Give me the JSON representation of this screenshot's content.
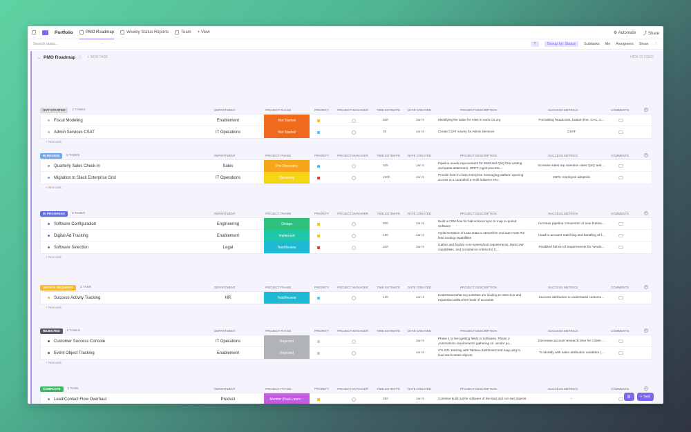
{
  "nav": {
    "portfolio": "Portfolio",
    "tabs": [
      "PMO Roadmap",
      "Weekly Status Reports",
      "Team"
    ],
    "add_view": "+ View",
    "automate": "Automate",
    "share": "Share"
  },
  "toolbar": {
    "search_placeholder": "Search tasks...",
    "more": "···",
    "filter": "T",
    "group_by": "Group by: Status",
    "subtasks": "Subtasks",
    "me": "Me",
    "assignees": "Assignees",
    "show": "Show"
  },
  "board": {
    "title": "PMO Roadmap",
    "new_task": "+ NEW TASK",
    "hide_closed": "HIDE CLOSED",
    "new_task_row": "+ New task"
  },
  "columns": [
    "DEPARTMENT",
    "PROJECT PHASE",
    "PRIORITY",
    "PROJECT MANAGER",
    "TIME ESTIMATE",
    "DATE CREATED",
    "PROJECT DESCRIPTION",
    "SUCCESS METRICS",
    "COMMENTS"
  ],
  "groups": [
    {
      "status": "NOT STARTED",
      "count": "2 TASKS",
      "color": "#d9d9d9",
      "text_color": "#666666",
      "rows": [
        {
          "name": "Fiscal Modeling",
          "dept": "Enablement",
          "phase": "Not Started",
          "phase_color": "#f06a1e",
          "flag": "#f5c518",
          "time": "50h",
          "date": "Jan 5",
          "desc": "Identifying the value for roles in each CX org",
          "metric": "Forcasting headcount, bottom line, CAC, C..."
        },
        {
          "name": "Admin Services CSAT",
          "dept": "IT Operations",
          "phase": "Not Started",
          "phase_color": "#f06a1e",
          "flag": "#4fc3f7",
          "time": "3h",
          "date": "Jan 5",
          "desc": "Create CSAT survey for Admin Services",
          "metric": "CSAT"
        }
      ]
    },
    {
      "status": "IN REVIEW",
      "count": "2 TASKS",
      "color": "#6fa8f5",
      "text_color": "#ffffff",
      "rows": [
        {
          "name": "Quarterly Sales Check-in",
          "dept": "Sales",
          "phase": "Pre-Discovery",
          "phase_color": "#f7a51c",
          "flag": "#4fc3f7",
          "time": "40h",
          "date": "Jan 5",
          "desc": "Pipeline needs improvement for MoM and QoQ fore-casting and quota attainment.  SPIFF mgmt process...",
          "metric": "Increase sales rep retention rates QoQ and ..."
        },
        {
          "name": "Migration to Slack Enterprise Grid",
          "dept": "IT Operations",
          "phase": "Discovery",
          "phase_color": "#f5d616",
          "flag": "#e53935",
          "time": "120h",
          "date": "Jan 5",
          "desc": "Provide best-in-class enterprise messaging platform opening access to a controlled a multi-instance env...",
          "metric": "100% employee adoption"
        }
      ]
    },
    {
      "status": "IN PROGRESS",
      "count": "3 TASKS",
      "color": "#5b6ee8",
      "text_color": "#ffffff",
      "rows": [
        {
          "name": "Software Configuration",
          "dept": "Engineering",
          "phase": "Design",
          "phase_color": "#2ec27e",
          "flag": "#f5c518",
          "time": "60h",
          "date": "Jan 5",
          "desc": "Build a CRM flow for bidirectional sync to map re-quired Software",
          "metric": "Increase pipeline conversion of new busine..."
        },
        {
          "name": "Digital Ad Tracking",
          "dept": "Enablement",
          "phase": "Implement",
          "phase_color": "#1ec7a8",
          "flag": "#f5c518",
          "time": "15h",
          "date": "Jan 5",
          "desc": "Implementation of Lean Data to streamline and auto-mate the lead routing capabilities",
          "metric": "Lead to account matching and handling of f..."
        },
        {
          "name": "Software Selection",
          "dept": "Legal",
          "phase": "Test/Review",
          "phase_color": "#1fb9d4",
          "flag": "#e53935",
          "time": "20h",
          "date": "Jan 5",
          "desc": "Gather and finalize core system/tool requirements, MoSCoW capabilities, and acceptance criteria for C...",
          "metric": "Finalized full set of requirements for Vendo..."
        }
      ]
    },
    {
      "status": "UPDATE REQUIRED",
      "count": "1 TASK",
      "color": "#f5b82e",
      "text_color": "#ffffff",
      "rows": [
        {
          "name": "Success Activity Tracking",
          "dept": "HR",
          "phase": "Test/Review",
          "phase_color": "#1fb9d4",
          "flag": "#4fc3f7",
          "time": "12h",
          "date": "Jan 3",
          "desc": "Understand what rep activities are leading to reten-tion and expansion within their book of accounts.",
          "metric": "Success attribution to understand custome..."
        }
      ]
    },
    {
      "status": "REJECTED",
      "count": "2 TASKS",
      "color": "#5a5a64",
      "text_color": "#ffffff",
      "rows": [
        {
          "name": "Customer Success Console",
          "dept": "IT Operations",
          "phase": "Rejected",
          "phase_color": "#b0b3b8",
          "flag": "#cccccc",
          "time": "",
          "date": "Jan 5",
          "desc": "Phase 1 is live (getting fields in Software).  Phase 2: Automations requirements gathering vs. vendor pu...",
          "metric": "Decrease account research time for CSMs ..."
        },
        {
          "name": "Event Object Tracking",
          "dept": "Enablement",
          "phase": "Rejected",
          "phase_color": "#b0b3b8",
          "flag": "#cccccc",
          "time": "",
          "date": "Jan 5",
          "desc": "ATL BTL tracking with Tableau dashboard and map-ping to lead and contact objects",
          "metric": "To identify with sales attribution variables (..."
        }
      ]
    },
    {
      "status": "COMPLETE",
      "count": "1 TASK",
      "color": "#3dbb61",
      "text_color": "#ffffff",
      "rows": [
        {
          "name": "Lead/Contact Flow Overhaul",
          "dept": "Product",
          "phase": "Monitor (Post-Launc...",
          "phase_color": "#c15de0",
          "flag": "#f5c518",
          "time": "25h",
          "date": "Jan 5",
          "desc": "Continue build out for software of the lead and con-tact objects",
          "metric": "–"
        }
      ]
    }
  ],
  "floating": {
    "task_button": "+ Task"
  }
}
